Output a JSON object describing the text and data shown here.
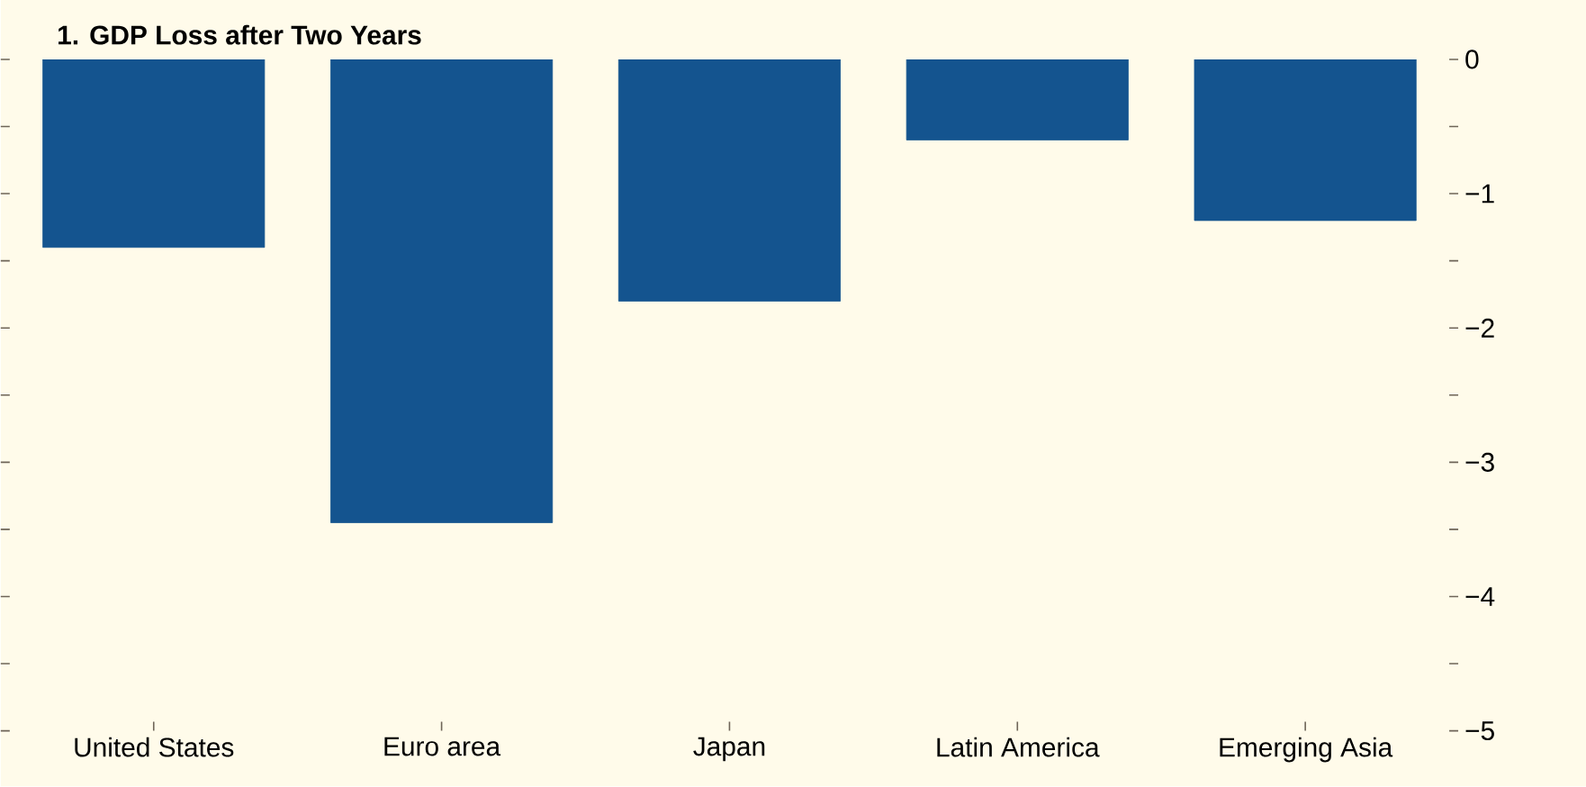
{
  "chart_data": {
    "type": "bar",
    "title": "1. GDP Loss after Two Years",
    "categories": [
      "United States",
      "Euro area",
      "Japan",
      "Latin America",
      "Emerging Asia"
    ],
    "values": [
      -1.4,
      -3.45,
      -1.8,
      -0.6,
      -1.2
    ],
    "color": "#14548f",
    "ylim": [
      -5,
      0
    ],
    "yticks": [
      {
        "value": 0,
        "label": "0"
      },
      {
        "value": -1,
        "label": "−1"
      },
      {
        "value": -2,
        "label": "−2"
      },
      {
        "value": -3,
        "label": "−3"
      },
      {
        "value": -4,
        "label": "−4"
      },
      {
        "value": -5,
        "label": "−5"
      }
    ]
  }
}
